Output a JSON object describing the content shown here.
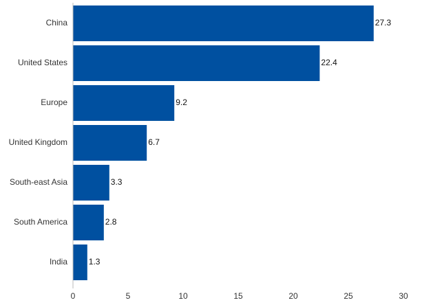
{
  "chart_data": {
    "type": "bar",
    "orientation": "horizontal",
    "title": "",
    "xlabel": "",
    "ylabel": "",
    "categories": [
      "China",
      "United States",
      "Europe",
      "United Kingdom",
      "South-east Asia",
      "South America",
      "India"
    ],
    "values": [
      27.3,
      22.4,
      9.2,
      6.7,
      3.3,
      2.8,
      1.3
    ],
    "value_labels": [
      "27.3",
      "22.4",
      "9.2",
      "6.7",
      "3.3",
      "2.8",
      "1.3"
    ],
    "xlim": [
      0,
      30
    ],
    "xticks": [
      0,
      5,
      10,
      15,
      20,
      25,
      30
    ],
    "bar_color": "#0050a0",
    "grid": false,
    "legend": "none"
  }
}
